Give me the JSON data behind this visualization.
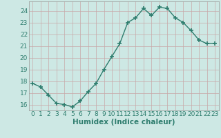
{
  "x": [
    0,
    1,
    2,
    3,
    4,
    5,
    6,
    7,
    8,
    9,
    10,
    11,
    12,
    13,
    14,
    15,
    16,
    17,
    18,
    19,
    20,
    21,
    22,
    23
  ],
  "y": [
    17.8,
    17.5,
    16.8,
    16.1,
    16.0,
    15.8,
    16.3,
    17.1,
    17.8,
    19.0,
    20.1,
    21.2,
    23.0,
    23.4,
    24.2,
    23.6,
    24.3,
    24.2,
    23.4,
    23.0,
    22.3,
    21.5,
    21.2,
    21.2
  ],
  "line_color": "#2e7d6e",
  "marker": "+",
  "markersize": 4,
  "markeredgewidth": 1.2,
  "linewidth": 1.0,
  "bg_color": "#cde8e4",
  "grid_color_major": "#c0b0b0",
  "grid_color_minor": "#ddd0d0",
  "xlabel": "Humidex (Indice chaleur)",
  "ylabel": "",
  "ylim": [
    15.5,
    24.8
  ],
  "xlim": [
    -0.5,
    23.5
  ],
  "yticks": [
    16,
    17,
    18,
    19,
    20,
    21,
    22,
    23,
    24
  ],
  "xticks": [
    0,
    1,
    2,
    3,
    4,
    5,
    6,
    7,
    8,
    9,
    10,
    11,
    12,
    13,
    14,
    15,
    16,
    17,
    18,
    19,
    20,
    21,
    22,
    23
  ],
  "xlabel_fontsize": 7.5,
  "tick_fontsize": 6.5,
  "tick_color": "#2e7d6e"
}
